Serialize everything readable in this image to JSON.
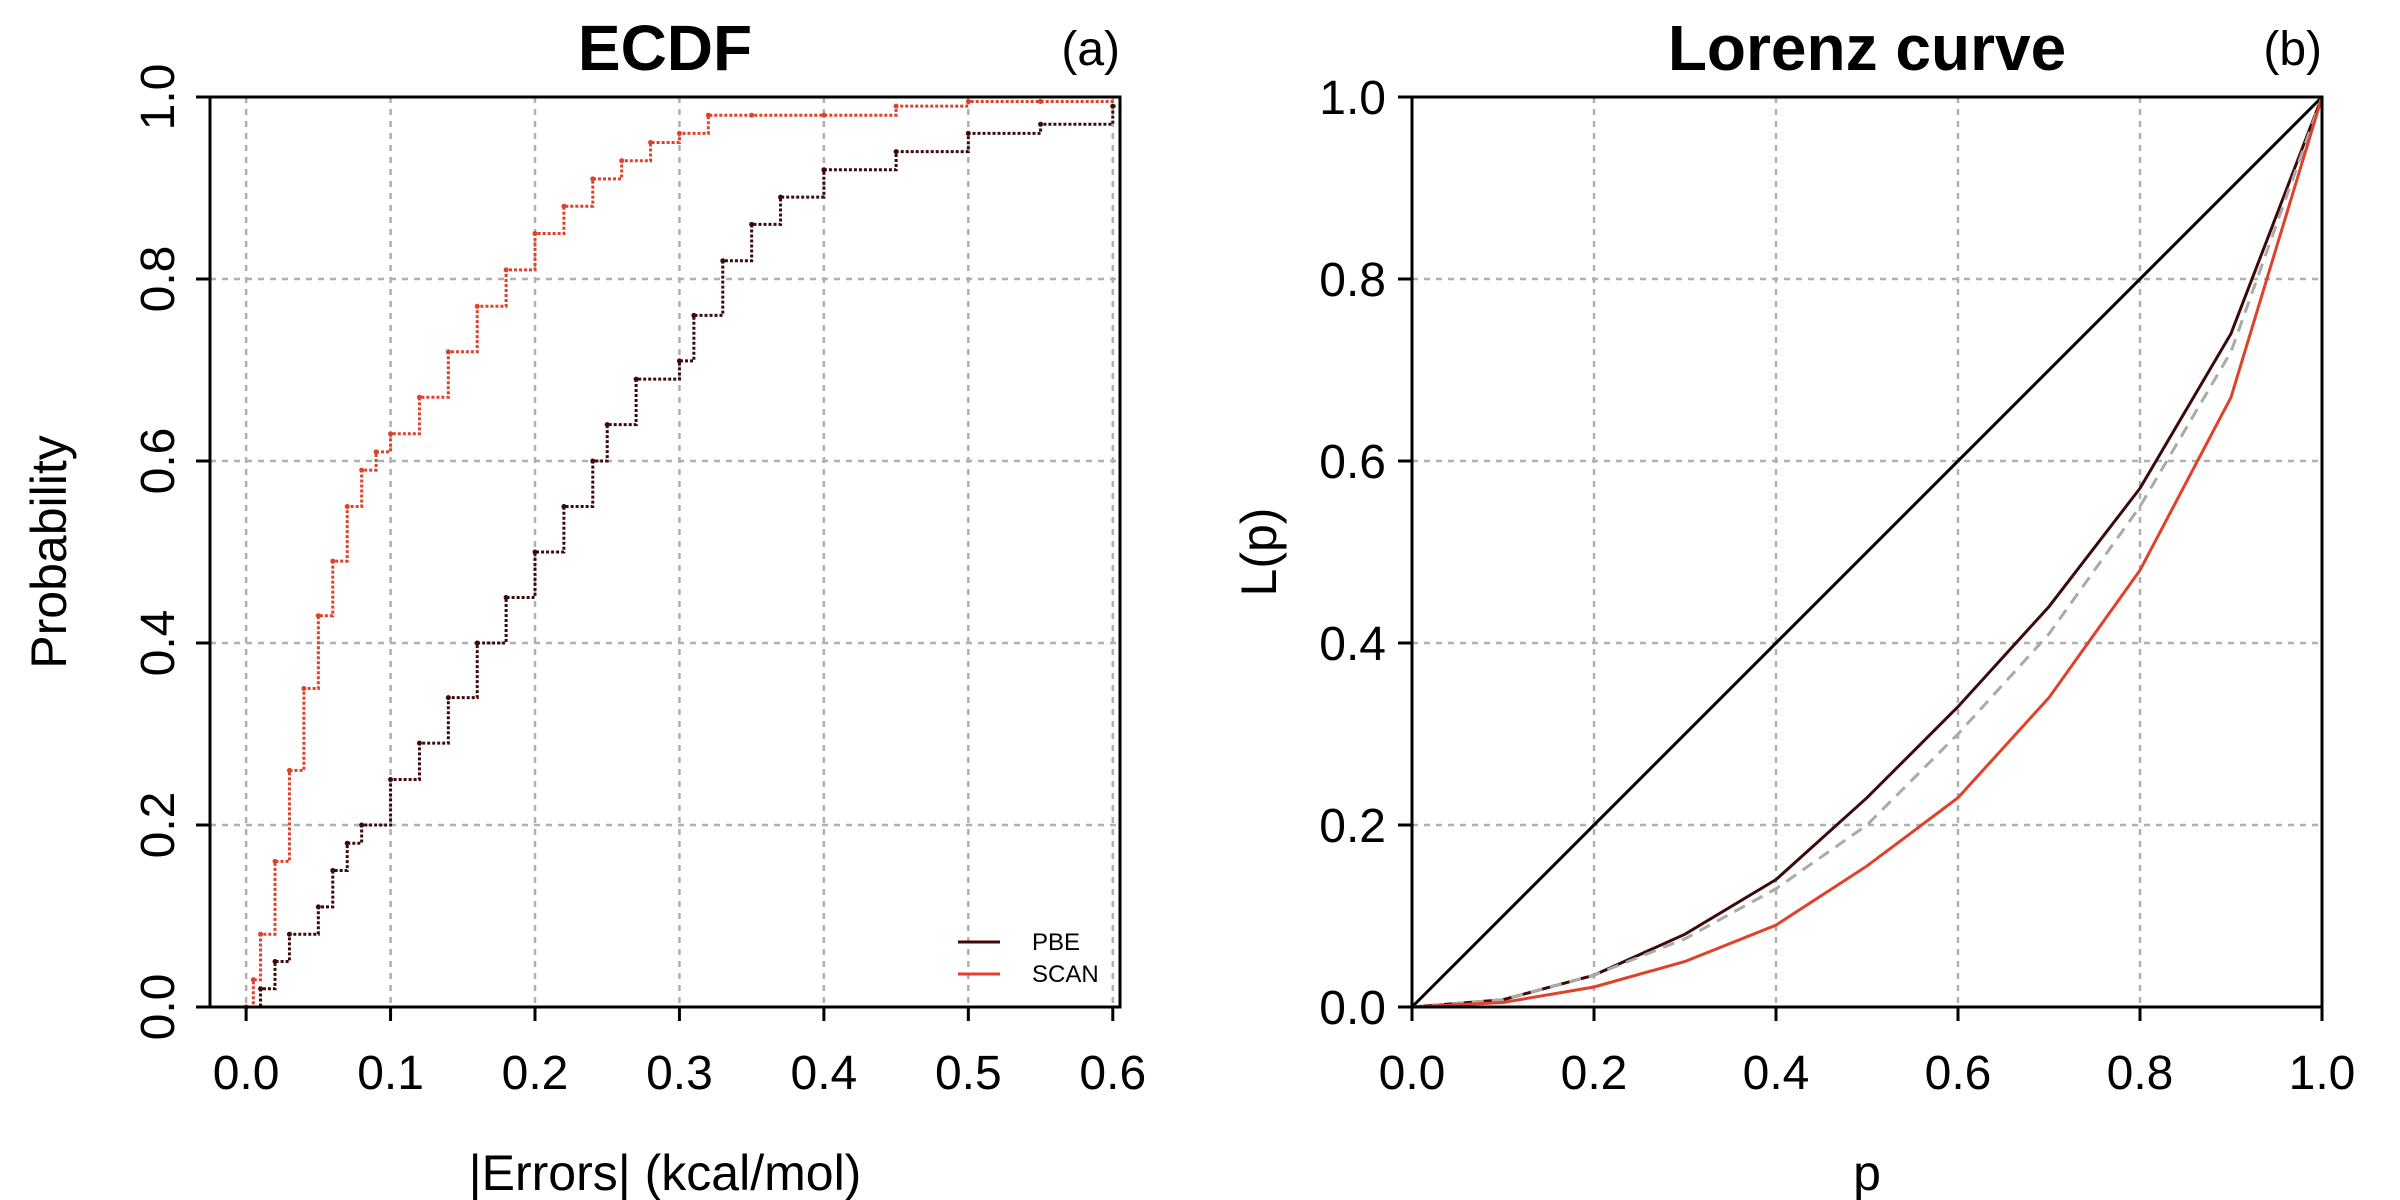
{
  "colors": {
    "PBE": "#3d0a0a",
    "SCAN": "#e0412a",
    "reference": "#000000",
    "dashed": "#aaaaaa"
  },
  "chart_data": [
    {
      "type": "line",
      "title": "ECDF",
      "panel_label": "(a)",
      "xlabel": "|Errors| (kcal/mol)",
      "ylabel": "Probability",
      "xlim": [
        -0.025,
        0.605
      ],
      "ylim": [
        0,
        1
      ],
      "xticks": [
        "0.0",
        "0.1",
        "0.2",
        "0.3",
        "0.4",
        "0.5",
        "0.6"
      ],
      "yticks": [
        "0.0",
        "0.2",
        "0.4",
        "0.6",
        "0.8",
        "1.0"
      ],
      "grid": true,
      "legend_position": "bottom-right",
      "series": [
        {
          "name": "PBE",
          "x": [
            0.0,
            0.01,
            0.02,
            0.03,
            0.05,
            0.06,
            0.07,
            0.08,
            0.1,
            0.12,
            0.14,
            0.16,
            0.18,
            0.2,
            0.22,
            0.24,
            0.25,
            0.27,
            0.3,
            0.31,
            0.33,
            0.35,
            0.37,
            0.4,
            0.45,
            0.5,
            0.55,
            0.6
          ],
          "y": [
            0.0,
            0.02,
            0.05,
            0.08,
            0.11,
            0.15,
            0.18,
            0.2,
            0.25,
            0.29,
            0.34,
            0.4,
            0.45,
            0.5,
            0.55,
            0.6,
            0.64,
            0.69,
            0.71,
            0.76,
            0.82,
            0.86,
            0.89,
            0.92,
            0.94,
            0.96,
            0.97,
            0.99
          ]
        },
        {
          "name": "SCAN",
          "x": [
            0.0,
            0.005,
            0.01,
            0.02,
            0.03,
            0.04,
            0.05,
            0.06,
            0.07,
            0.08,
            0.09,
            0.1,
            0.12,
            0.14,
            0.16,
            0.18,
            0.2,
            0.22,
            0.24,
            0.26,
            0.28,
            0.3,
            0.32,
            0.35,
            0.4,
            0.45,
            0.5,
            0.55
          ],
          "y": [
            0.0,
            0.03,
            0.08,
            0.16,
            0.26,
            0.35,
            0.43,
            0.49,
            0.55,
            0.59,
            0.61,
            0.63,
            0.67,
            0.72,
            0.77,
            0.81,
            0.85,
            0.88,
            0.91,
            0.93,
            0.95,
            0.96,
            0.98,
            0.98,
            0.98,
            0.99,
            0.995,
            0.995
          ]
        }
      ]
    },
    {
      "type": "line",
      "title": "Lorenz curve",
      "panel_label": "(b)",
      "xlabel": "p",
      "ylabel": "L(p)",
      "xlim": [
        0,
        1
      ],
      "ylim": [
        0,
        1
      ],
      "xticks": [
        "0.0",
        "0.2",
        "0.4",
        "0.6",
        "0.8",
        "1.0"
      ],
      "yticks": [
        "0.0",
        "0.2",
        "0.4",
        "0.6",
        "0.8",
        "1.0"
      ],
      "grid": true,
      "series": [
        {
          "key": "equality",
          "style": "solid",
          "x": [
            0,
            1
          ],
          "y": [
            0,
            1
          ]
        },
        {
          "key": "PBE",
          "x": [
            0,
            0.1,
            0.2,
            0.3,
            0.4,
            0.5,
            0.6,
            0.7,
            0.8,
            0.9,
            1.0
          ],
          "y": [
            0,
            0.008,
            0.035,
            0.08,
            0.14,
            0.23,
            0.33,
            0.44,
            0.57,
            0.74,
            1.0
          ]
        },
        {
          "key": "reference",
          "style": "dashed",
          "x": [
            0,
            0.1,
            0.2,
            0.3,
            0.4,
            0.5,
            0.6,
            0.7,
            0.8,
            0.9,
            1.0
          ],
          "y": [
            0,
            0.008,
            0.035,
            0.075,
            0.13,
            0.2,
            0.3,
            0.41,
            0.55,
            0.72,
            1.0
          ]
        },
        {
          "key": "SCAN",
          "x": [
            0,
            0.1,
            0.2,
            0.3,
            0.4,
            0.5,
            0.6,
            0.7,
            0.8,
            0.9,
            1.0
          ],
          "y": [
            0,
            0.005,
            0.022,
            0.05,
            0.09,
            0.155,
            0.23,
            0.34,
            0.48,
            0.67,
            1.0
          ]
        }
      ]
    }
  ]
}
